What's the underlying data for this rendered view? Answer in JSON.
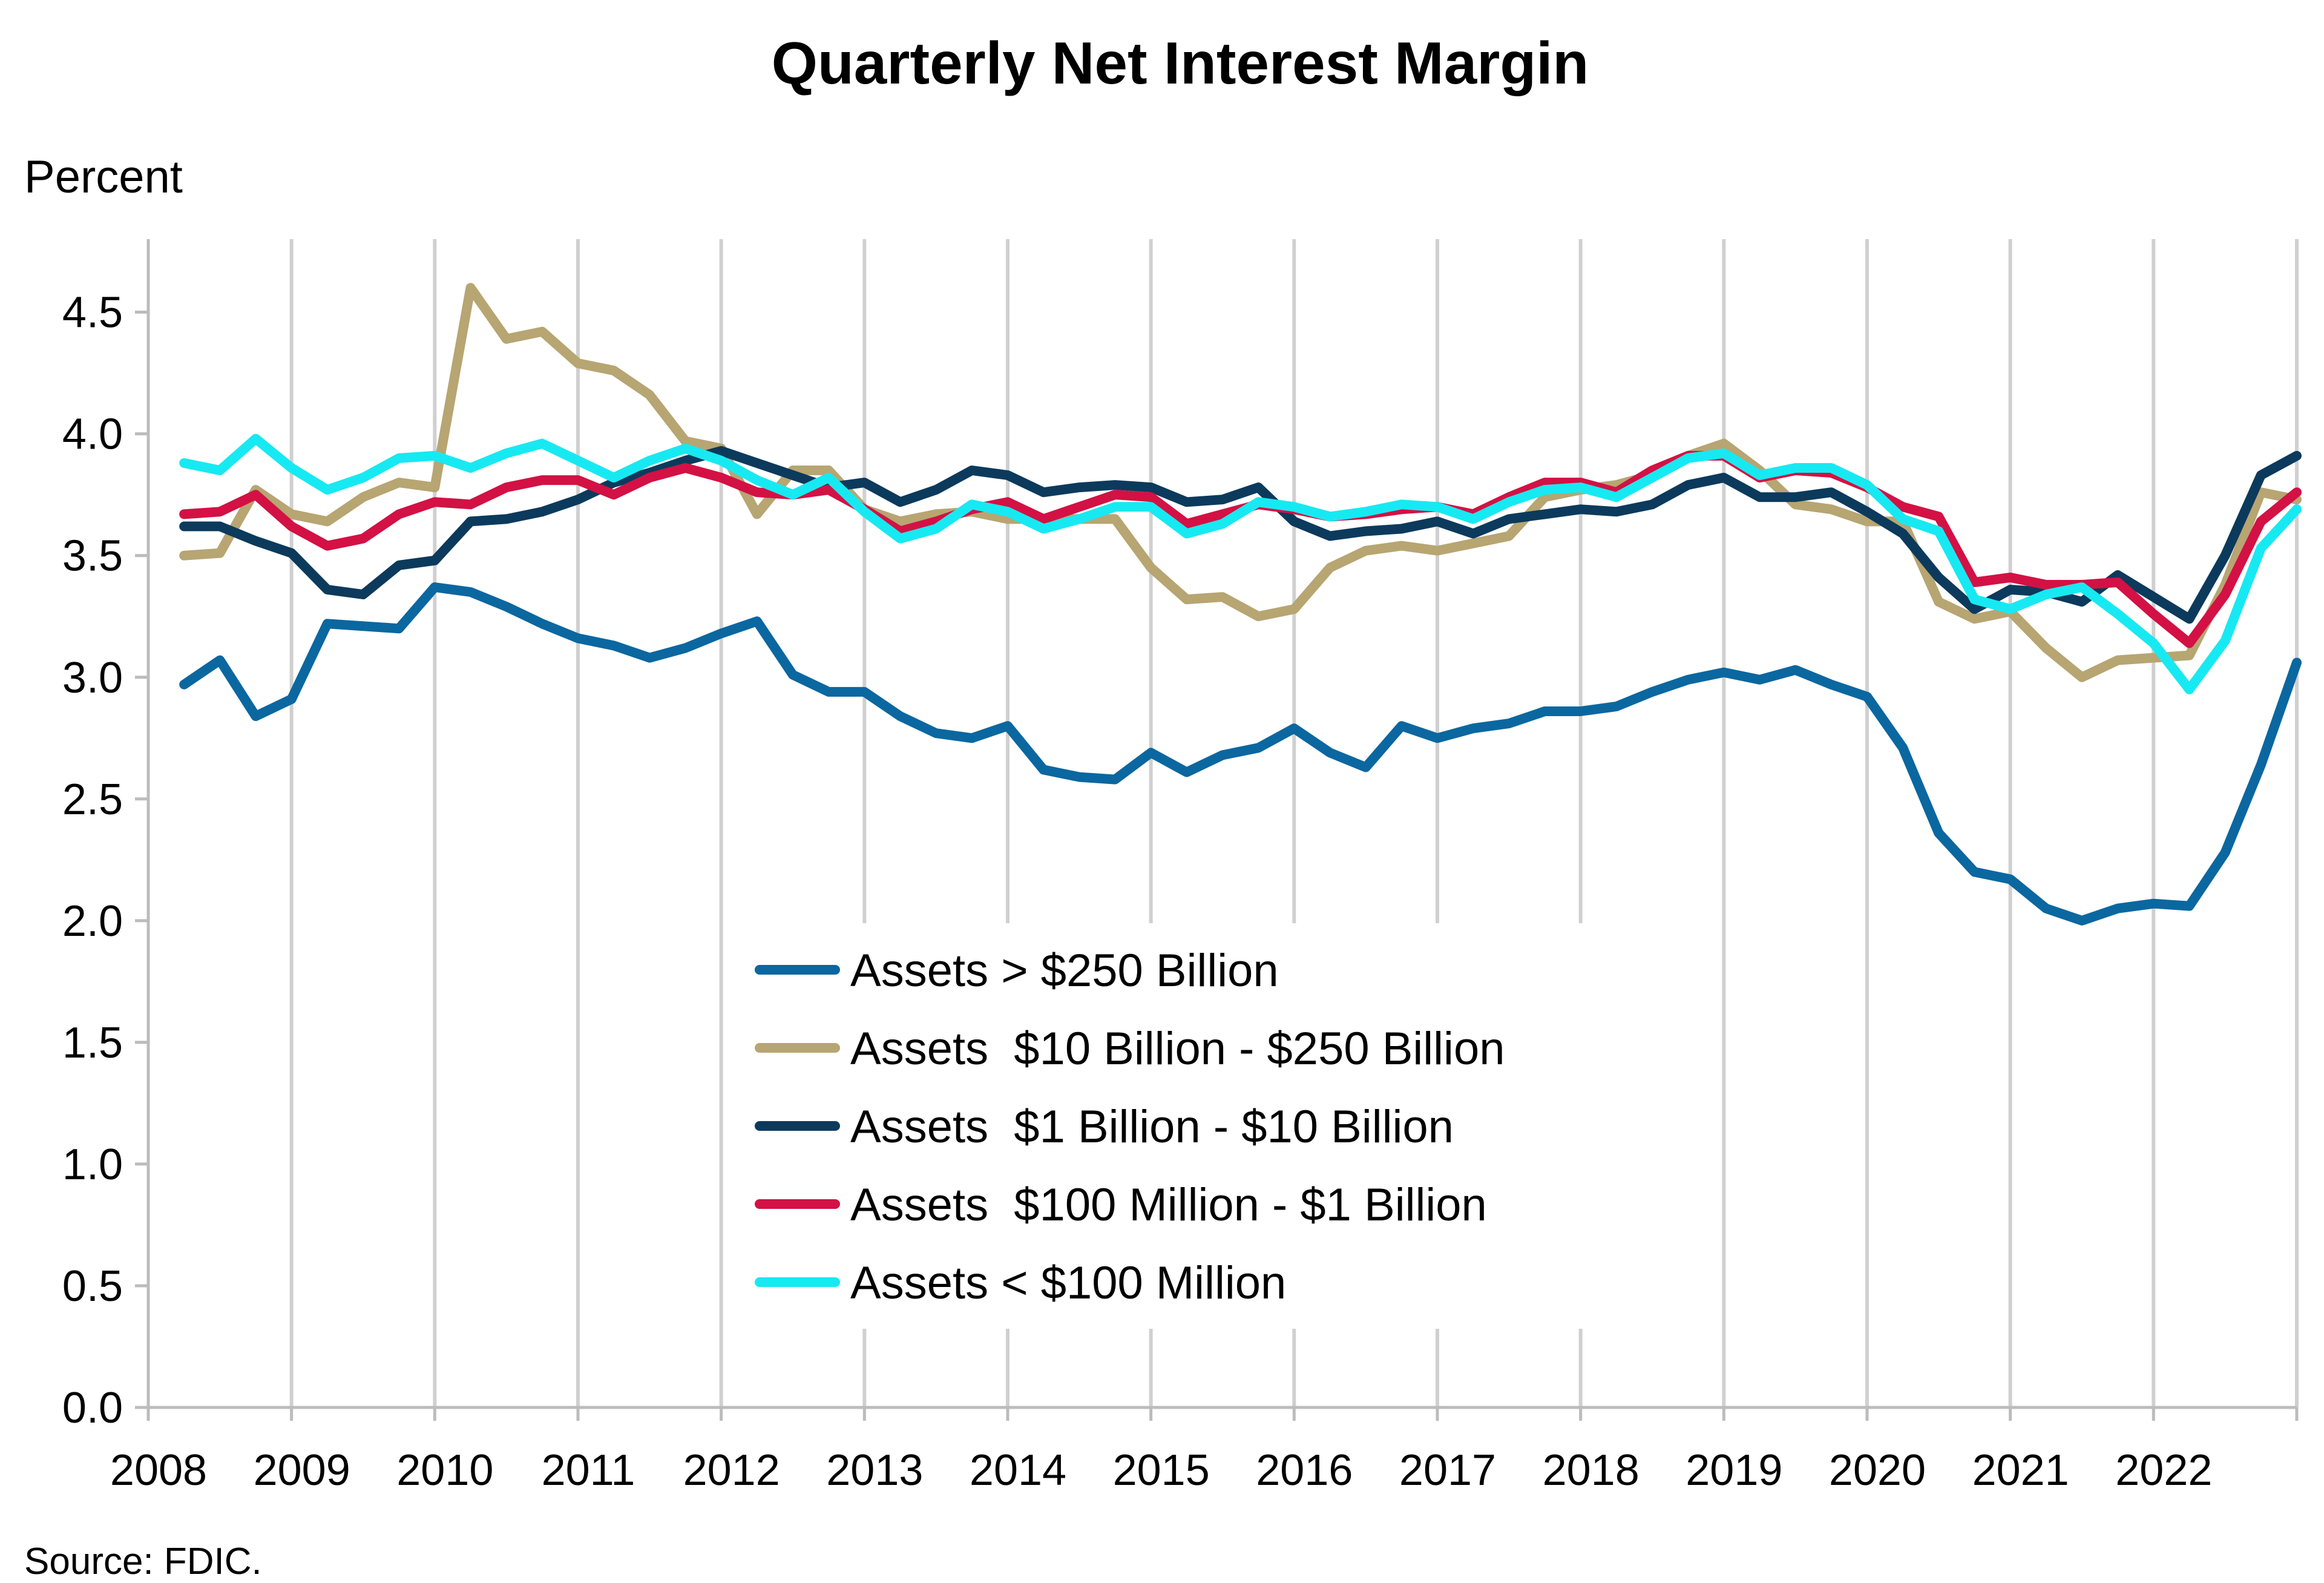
{
  "chart_data": {
    "type": "line",
    "title": "Quarterly Net Interest Margin",
    "ylabel": "Percent",
    "xlabel": "",
    "source": "Source: FDIC.",
    "ylim": [
      0,
      4.8
    ],
    "yticks": [
      "0.0",
      "0.5",
      "1.0",
      "1.5",
      "2.0",
      "2.5",
      "3.0",
      "3.5",
      "4.0",
      "4.5"
    ],
    "xticks": [
      "2008",
      "2009",
      "2010",
      "2011",
      "2012",
      "2013",
      "2014",
      "2015",
      "2016",
      "2017",
      "2018",
      "2019",
      "2020",
      "2021",
      "2022"
    ],
    "x_start_year": 2008,
    "x_range": [
      2008,
      2023
    ],
    "x_step": 0.25,
    "grid": "vertical",
    "legend": "center",
    "series": [
      {
        "name": "Assets > $250 Billion",
        "color": "#0b67a0",
        "values": [
          2.97,
          3.07,
          2.84,
          2.91,
          3.22,
          3.21,
          3.2,
          3.37,
          3.35,
          3.29,
          3.22,
          3.16,
          3.13,
          3.08,
          3.12,
          3.18,
          3.23,
          3.01,
          2.94,
          2.94,
          2.84,
          2.77,
          2.75,
          2.8,
          2.62,
          2.59,
          2.58,
          2.69,
          2.61,
          2.68,
          2.71,
          2.79,
          2.69,
          2.63,
          2.8,
          2.75,
          2.79,
          2.81,
          2.86,
          2.86,
          2.88,
          2.94,
          2.99,
          3.02,
          2.99,
          3.03,
          2.97,
          2.92,
          2.71,
          2.36,
          2.2,
          2.17,
          2.05,
          2.0,
          2.05,
          2.07,
          2.06,
          2.28,
          2.64,
          3.06
        ]
      },
      {
        "name": "Assets  $10 Billion - $250 Billion",
        "color": "#b7a572",
        "values": [
          3.5,
          3.51,
          3.77,
          3.67,
          3.64,
          3.74,
          3.8,
          3.78,
          4.6,
          4.39,
          4.42,
          4.29,
          4.26,
          4.16,
          3.97,
          3.94,
          3.67,
          3.85,
          3.85,
          3.69,
          3.64,
          3.67,
          3.68,
          3.65,
          3.65,
          3.65,
          3.65,
          3.45,
          3.32,
          3.33,
          3.25,
          3.28,
          3.45,
          3.52,
          3.54,
          3.52,
          3.55,
          3.58,
          3.74,
          3.77,
          3.79,
          3.83,
          3.91,
          3.96,
          3.85,
          3.71,
          3.69,
          3.64,
          3.64,
          3.31,
          3.24,
          3.27,
          3.12,
          3.0,
          3.07,
          3.08,
          3.09,
          3.38,
          3.76,
          3.73
        ]
      },
      {
        "name": "Assets  $1 Billion - $10 Billion",
        "color": "#0c3a5c",
        "values": [
          3.62,
          3.62,
          3.56,
          3.51,
          3.36,
          3.34,
          3.46,
          3.48,
          3.64,
          3.65,
          3.68,
          3.73,
          3.8,
          3.84,
          3.89,
          3.93,
          3.88,
          3.83,
          3.78,
          3.8,
          3.72,
          3.77,
          3.85,
          3.83,
          3.76,
          3.78,
          3.79,
          3.78,
          3.72,
          3.73,
          3.78,
          3.64,
          3.58,
          3.6,
          3.61,
          3.64,
          3.59,
          3.65,
          3.67,
          3.69,
          3.68,
          3.71,
          3.79,
          3.82,
          3.74,
          3.74,
          3.76,
          3.68,
          3.59,
          3.41,
          3.28,
          3.36,
          3.35,
          3.31,
          3.42,
          3.33,
          3.24,
          3.5,
          3.83,
          3.91
        ]
      },
      {
        "name": "Assets  $100 Million - $1 Billion",
        "color": "#d31144",
        "values": [
          3.67,
          3.68,
          3.75,
          3.62,
          3.54,
          3.57,
          3.67,
          3.72,
          3.71,
          3.78,
          3.81,
          3.81,
          3.75,
          3.82,
          3.86,
          3.82,
          3.76,
          3.75,
          3.77,
          3.69,
          3.6,
          3.64,
          3.69,
          3.72,
          3.65,
          3.7,
          3.75,
          3.74,
          3.63,
          3.67,
          3.71,
          3.69,
          3.66,
          3.67,
          3.69,
          3.7,
          3.67,
          3.74,
          3.8,
          3.8,
          3.76,
          3.85,
          3.91,
          3.91,
          3.82,
          3.85,
          3.84,
          3.78,
          3.7,
          3.66,
          3.39,
          3.41,
          3.38,
          3.38,
          3.39,
          3.26,
          3.14,
          3.34,
          3.64,
          3.76
        ]
      },
      {
        "name": "Assets < $100 Million",
        "color": "#17e9f2",
        "values": [
          3.88,
          3.85,
          3.98,
          3.86,
          3.77,
          3.82,
          3.9,
          3.91,
          3.86,
          3.92,
          3.96,
          3.89,
          3.82,
          3.89,
          3.94,
          3.89,
          3.81,
          3.75,
          3.82,
          3.68,
          3.57,
          3.61,
          3.71,
          3.68,
          3.61,
          3.65,
          3.7,
          3.7,
          3.59,
          3.63,
          3.72,
          3.7,
          3.66,
          3.68,
          3.71,
          3.7,
          3.65,
          3.72,
          3.77,
          3.78,
          3.74,
          3.82,
          3.9,
          3.92,
          3.83,
          3.86,
          3.86,
          3.79,
          3.65,
          3.6,
          3.32,
          3.28,
          3.34,
          3.37,
          3.26,
          3.14,
          2.95,
          3.15,
          3.53,
          3.69
        ]
      }
    ]
  }
}
